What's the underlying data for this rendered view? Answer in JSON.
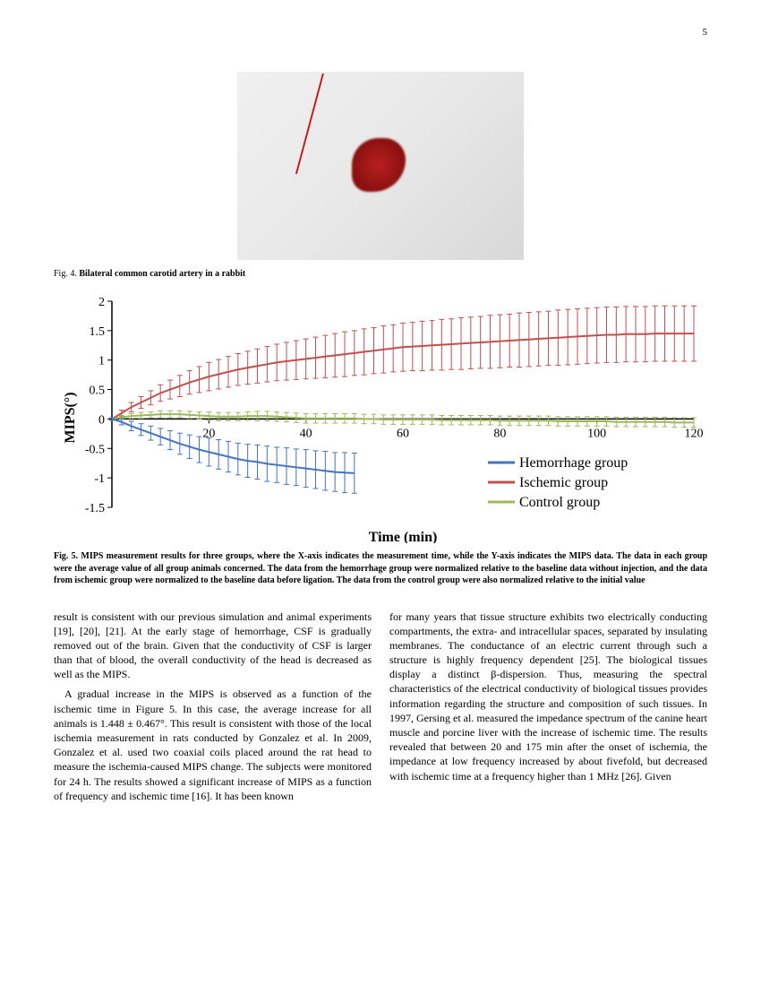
{
  "page_number": "5",
  "fig4": {
    "caption_label": "Fig. 4.",
    "caption_text": "Bilateral common carotid artery in a rabbit"
  },
  "fig5": {
    "caption_label": "Fig. 5.",
    "caption_text": "MIPS measurement results for three groups, where the X-axis indicates the measurement time, while the Y-axis indicates the MIPS data. The data in each group were the average value of all group animals concerned. The data from the hemorrhage group were normalized relative to the baseline data without injection, and the data from ischemic group were normalized to the baseline data before ligation. The data from the control group were also normalized relative to the initial value",
    "ylabel": "MIPS(°)",
    "xlabel": "Time (min)",
    "y_ticks": [
      "2",
      "1.5",
      "1",
      "0.5",
      "0",
      "-0.5",
      "-1",
      "-1.5"
    ],
    "y_tick_vals": [
      2,
      1.5,
      1,
      0.5,
      0,
      -0.5,
      -1,
      -1.5
    ],
    "x_ticks": [
      "20",
      "40",
      "60",
      "80",
      "100",
      "120"
    ],
    "x_tick_vals": [
      20,
      40,
      60,
      80,
      100,
      120
    ],
    "xlim": [
      0,
      120
    ],
    "ylim": [
      -1.5,
      2
    ],
    "series": {
      "hemorrhage": {
        "label": "Hemorrhage group",
        "color": "#4472c4",
        "x": [
          0,
          2,
          4,
          6,
          8,
          10,
          12,
          14,
          16,
          18,
          20,
          22,
          24,
          26,
          28,
          30,
          32,
          34,
          36,
          38,
          40,
          42,
          44,
          46,
          48,
          50
        ],
        "y": [
          0,
          -0.05,
          -0.12,
          -0.18,
          -0.24,
          -0.3,
          -0.36,
          -0.42,
          -0.47,
          -0.52,
          -0.56,
          -0.6,
          -0.64,
          -0.68,
          -0.71,
          -0.73,
          -0.76,
          -0.78,
          -0.8,
          -0.82,
          -0.84,
          -0.86,
          -0.88,
          -0.9,
          -0.91,
          -0.92
        ],
        "err": [
          0.02,
          0.05,
          0.08,
          0.1,
          0.12,
          0.14,
          0.16,
          0.18,
          0.2,
          0.22,
          0.24,
          0.25,
          0.26,
          0.27,
          0.28,
          0.29,
          0.3,
          0.3,
          0.31,
          0.31,
          0.32,
          0.32,
          0.33,
          0.33,
          0.34,
          0.34
        ]
      },
      "ischemic": {
        "label": "Ischemic group",
        "color": "#c0504d",
        "x": [
          0,
          2,
          4,
          6,
          8,
          10,
          12,
          14,
          16,
          18,
          20,
          22,
          24,
          26,
          28,
          30,
          32,
          34,
          36,
          38,
          40,
          42,
          44,
          46,
          48,
          50,
          52,
          54,
          56,
          58,
          60,
          62,
          64,
          66,
          68,
          70,
          72,
          74,
          76,
          78,
          80,
          82,
          84,
          86,
          88,
          90,
          92,
          94,
          96,
          98,
          100,
          102,
          104,
          106,
          108,
          110,
          112,
          114,
          116,
          118,
          120
        ],
        "y": [
          0,
          0.1,
          0.2,
          0.28,
          0.36,
          0.44,
          0.5,
          0.56,
          0.62,
          0.67,
          0.72,
          0.76,
          0.8,
          0.84,
          0.87,
          0.9,
          0.93,
          0.96,
          0.98,
          1.0,
          1.02,
          1.04,
          1.06,
          1.08,
          1.1,
          1.12,
          1.14,
          1.16,
          1.18,
          1.2,
          1.22,
          1.23,
          1.24,
          1.25,
          1.26,
          1.27,
          1.28,
          1.29,
          1.3,
          1.31,
          1.32,
          1.33,
          1.34,
          1.35,
          1.36,
          1.37,
          1.38,
          1.39,
          1.4,
          1.41,
          1.42,
          1.43,
          1.43,
          1.44,
          1.44,
          1.44,
          1.45,
          1.45,
          1.45,
          1.45,
          1.45
        ],
        "err": [
          0.02,
          0.05,
          0.08,
          0.1,
          0.12,
          0.14,
          0.16,
          0.18,
          0.2,
          0.22,
          0.24,
          0.25,
          0.26,
          0.27,
          0.28,
          0.29,
          0.3,
          0.31,
          0.32,
          0.33,
          0.34,
          0.35,
          0.36,
          0.37,
          0.38,
          0.38,
          0.39,
          0.39,
          0.4,
          0.4,
          0.41,
          0.41,
          0.42,
          0.42,
          0.43,
          0.43,
          0.44,
          0.44,
          0.44,
          0.45,
          0.45,
          0.45,
          0.46,
          0.46,
          0.46,
          0.46,
          0.47,
          0.47,
          0.47,
          0.47,
          0.47,
          0.47,
          0.47,
          0.47,
          0.47,
          0.47,
          0.47,
          0.47,
          0.47,
          0.47,
          0.47
        ]
      },
      "control": {
        "label": "Control group",
        "color": "#9bbb59",
        "x": [
          0,
          2,
          4,
          6,
          8,
          10,
          12,
          14,
          16,
          18,
          20,
          22,
          24,
          26,
          28,
          30,
          32,
          34,
          36,
          38,
          40,
          42,
          44,
          46,
          48,
          50,
          52,
          54,
          56,
          58,
          60,
          62,
          64,
          66,
          68,
          70,
          72,
          74,
          76,
          78,
          80,
          82,
          84,
          86,
          88,
          90,
          92,
          94,
          96,
          98,
          100,
          102,
          104,
          106,
          108,
          110,
          112,
          114,
          116,
          118,
          120
        ],
        "y": [
          0,
          0.03,
          0.05,
          0.06,
          0.07,
          0.08,
          0.08,
          0.08,
          0.07,
          0.06,
          0.05,
          0.04,
          0.04,
          0.04,
          0.05,
          0.05,
          0.05,
          0.04,
          0.03,
          0.02,
          0.01,
          0.01,
          0.01,
          0.01,
          0.01,
          0.01,
          0,
          0,
          -0.01,
          -0.01,
          -0.01,
          -0.01,
          -0.01,
          -0.01,
          -0.02,
          -0.02,
          -0.02,
          -0.02,
          -0.02,
          -0.02,
          -0.03,
          -0.03,
          -0.03,
          -0.03,
          -0.03,
          -0.03,
          -0.04,
          -0.04,
          -0.04,
          -0.04,
          -0.04,
          -0.04,
          -0.05,
          -0.05,
          -0.05,
          -0.05,
          -0.05,
          -0.05,
          -0.06,
          -0.06,
          -0.06
        ],
        "err": [
          0.02,
          0.03,
          0.04,
          0.05,
          0.05,
          0.06,
          0.06,
          0.06,
          0.06,
          0.06,
          0.07,
          0.07,
          0.07,
          0.07,
          0.07,
          0.08,
          0.08,
          0.08,
          0.08,
          0.08,
          0.08,
          0.08,
          0.08,
          0.08,
          0.08,
          0.08,
          0.08,
          0.08,
          0.08,
          0.08,
          0.08,
          0.08,
          0.08,
          0.08,
          0.08,
          0.08,
          0.08,
          0.08,
          0.08,
          0.08,
          0.08,
          0.08,
          0.08,
          0.08,
          0.08,
          0.08,
          0.08,
          0.08,
          0.08,
          0.08,
          0.08,
          0.08,
          0.08,
          0.08,
          0.08,
          0.08,
          0.08,
          0.08,
          0.08,
          0.08,
          0.08
        ]
      }
    },
    "background_color": "#ffffff",
    "axis_color": "#000000",
    "tick_fontsize": 14,
    "label_fontsize": 16,
    "line_width": 2,
    "error_cap_width": 3
  },
  "body": {
    "col1_p1": "result is consistent with our previous simulation and animal experiments [19], [20], [21]. At the early stage of hemorrhage, CSF is gradually removed out of the brain. Given that the conductivity of CSF is larger than that of blood, the overall conductivity of the head is decreased as well as the MIPS.",
    "col1_p2": "A gradual increase in the MIPS is observed as a function of the ischemic time in Figure 5. In this case, the average increase for all animals is 1.448 ± 0.467°. This result is consistent with those of the local ischemia measurement in rats conducted by Gonzalez et al. In 2009, Gonzalez et al. used two coaxial coils placed around the rat head to measure the ischemia-caused MIPS change. The subjects were monitored for 24 h. The results showed a significant increase of MIPS as a function of frequency and ischemic time [16]. It has been known",
    "col2_p1": "for many years that tissue structure exhibits two electrically conducting compartments, the extra- and intracellular spaces, separated by insulating membranes. The conductance of an electric current through such a structure is highly frequency dependent [25]. The biological tissues display a distinct β-dispersion. Thus, measuring the spectral characteristics of the electrical conductivity of biological tissues provides information regarding the structure and composition of such tissues. In 1997, Gersing et al. measured the impedance spectrum of the canine heart muscle and porcine liver with the increase of ischemic time. The results revealed that between 20 and 175 min after the onset of ischemia, the impedance at low frequency increased by about fivefold, but decreased with ischemic time at a frequency higher than 1 MHz [26]. Given"
  }
}
